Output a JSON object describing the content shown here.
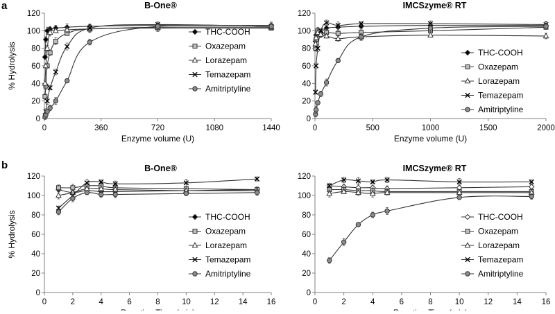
{
  "panel_letters": [
    "a",
    "b"
  ],
  "legend": {
    "entries": [
      "THC-COOH",
      "Oxazepam",
      "Lorazepam",
      "Temazepam",
      "Amitriptyline"
    ],
    "markers": [
      "diamond",
      "square",
      "triangle",
      "x",
      "circle"
    ]
  },
  "colors": {
    "black": "#000000",
    "gray": "#8c8c8c",
    "light_gray": "#bdbdbd",
    "line": "#333333"
  },
  "chart_data": [
    {
      "id": "a-left",
      "type": "line",
      "title": "B-One®",
      "xlabel": "Enzyme volume (U)",
      "ylabel": "% Hydrolysis",
      "xlim": [
        0,
        1440
      ],
      "ylim": [
        0,
        120
      ],
      "xticks": [
        0,
        360,
        720,
        1080,
        1440
      ],
      "yticks": [
        0,
        20,
        40,
        60,
        80,
        100,
        120
      ],
      "grid": false,
      "legend_position": "right",
      "series": [
        {
          "name": "THC-COOH",
          "marker": "diamond",
          "points": [
            [
              4,
              70
            ],
            [
              9,
              90
            ],
            [
              18,
              100
            ],
            [
              36,
              102
            ],
            [
              72,
              103
            ],
            [
              144,
              104
            ],
            [
              288,
              105
            ],
            [
              720,
              106
            ],
            [
              1440,
              106
            ]
          ]
        },
        {
          "name": "Oxazepam",
          "marker": "square",
          "points": [
            [
              4,
              25
            ],
            [
              9,
              37
            ],
            [
              18,
              60
            ],
            [
              36,
              75
            ],
            [
              72,
              88
            ],
            [
              144,
              97
            ],
            [
              288,
              102
            ],
            [
              720,
              103
            ],
            [
              1440,
              103
            ]
          ]
        },
        {
          "name": "Lorazepam",
          "marker": "triangle",
          "points": [
            [
              4,
              40
            ],
            [
              9,
              60
            ],
            [
              18,
              80
            ],
            [
              36,
              98
            ],
            [
              72,
              100
            ],
            [
              144,
              101
            ],
            [
              288,
              102
            ],
            [
              720,
              104
            ],
            [
              1440,
              104
            ]
          ]
        },
        {
          "name": "Temazepam",
          "marker": "x",
          "points": [
            [
              4,
              3
            ],
            [
              9,
              8
            ],
            [
              18,
              20
            ],
            [
              36,
              35
            ],
            [
              72,
              53
            ],
            [
              144,
              82
            ],
            [
              288,
              103
            ],
            [
              720,
              107
            ],
            [
              1440,
              105
            ]
          ]
        },
        {
          "name": "Amitriptyline",
          "marker": "circle",
          "points": [
            [
              4,
              2
            ],
            [
              9,
              4
            ],
            [
              18,
              8
            ],
            [
              36,
              12
            ],
            [
              72,
              20
            ],
            [
              144,
              43
            ],
            [
              288,
              87
            ],
            [
              720,
              105
            ],
            [
              1440,
              105
            ]
          ]
        }
      ]
    },
    {
      "id": "a-right",
      "type": "line",
      "title": "IMCSzyme® RT",
      "xlabel": "Enzyme volume (U)",
      "ylabel": "",
      "xlim": [
        0,
        2000
      ],
      "ylim": [
        0,
        120
      ],
      "xticks": [
        0,
        500,
        1000,
        1500,
        2000
      ],
      "yticks": [
        0,
        20,
        40,
        60,
        80,
        100,
        120
      ],
      "grid": false,
      "legend_position": "right",
      "series": [
        {
          "name": "THC-COOH",
          "marker": "diamond",
          "points": [
            [
              5,
              88
            ],
            [
              10,
              95
            ],
            [
              25,
              100
            ],
            [
              50,
              98
            ],
            [
              100,
              103
            ],
            [
              200,
              104
            ],
            [
              400,
              105
            ],
            [
              1000,
              106
            ],
            [
              2000,
              106
            ]
          ]
        },
        {
          "name": "Oxazepam",
          "marker": "square",
          "points": [
            [
              5,
              80
            ],
            [
              10,
              90
            ],
            [
              25,
              100
            ],
            [
              50,
              96
            ],
            [
              100,
              98
            ],
            [
              200,
              97
            ],
            [
              400,
              98
            ],
            [
              1000,
              100
            ],
            [
              2000,
              104
            ]
          ]
        },
        {
          "name": "Lorazepam",
          "marker": "triangle",
          "points": [
            [
              5,
              85
            ],
            [
              10,
              92
            ],
            [
              25,
              98
            ],
            [
              50,
              96
            ],
            [
              100,
              94
            ],
            [
              200,
              91
            ],
            [
              400,
              93
            ],
            [
              1000,
              95
            ],
            [
              2000,
              94
            ]
          ]
        },
        {
          "name": "Temazepam",
          "marker": "x",
          "points": [
            [
              5,
              30
            ],
            [
              10,
              60
            ],
            [
              25,
              80
            ],
            [
              50,
              100
            ],
            [
              100,
              109
            ],
            [
              200,
              106
            ],
            [
              400,
              108
            ],
            [
              1000,
              108
            ],
            [
              2000,
              107
            ]
          ]
        },
        {
          "name": "Amitriptyline",
          "marker": "circle",
          "points": [
            [
              5,
              5
            ],
            [
              10,
              10
            ],
            [
              25,
              18
            ],
            [
              50,
              28
            ],
            [
              100,
              41
            ],
            [
              200,
              66
            ],
            [
              400,
              93
            ],
            [
              1000,
              103
            ],
            [
              2000,
              105
            ]
          ]
        }
      ]
    },
    {
      "id": "b-left",
      "type": "line",
      "title": "B-One®",
      "xlabel": "Reaction Time (min)",
      "ylabel": "% Hydrolysis",
      "xlim": [
        0,
        16
      ],
      "ylim": [
        0,
        120
      ],
      "xticks": [
        0,
        2,
        4,
        6,
        8,
        10,
        12,
        14,
        16
      ],
      "yticks": [
        0,
        20,
        40,
        60,
        80,
        100,
        120
      ],
      "grid": false,
      "legend_position": "right",
      "series": [
        {
          "name": "THC-COOH",
          "marker": "diamond",
          "points": [
            [
              1,
              106
            ],
            [
              2,
              103
            ],
            [
              3,
              105
            ],
            [
              4,
              104
            ],
            [
              5,
              104
            ],
            [
              10,
              105
            ],
            [
              15,
              106
            ]
          ]
        },
        {
          "name": "Oxazepam",
          "marker": "square",
          "points": [
            [
              1,
              108
            ],
            [
              2,
              108
            ],
            [
              3,
              110
            ],
            [
              4,
              110
            ],
            [
              5,
              108
            ],
            [
              10,
              107
            ],
            [
              15,
              106
            ]
          ]
        },
        {
          "name": "Lorazepam",
          "marker": "triangle",
          "points": [
            [
              1,
              100
            ],
            [
              2,
              103
            ],
            [
              3,
              107
            ],
            [
              4,
              107
            ],
            [
              5,
              106
            ],
            [
              10,
              105
            ],
            [
              15,
              105
            ]
          ]
        },
        {
          "name": "Temazepam",
          "marker": "x",
          "points": [
            [
              1,
              87
            ],
            [
              2,
              100
            ],
            [
              3,
              113
            ],
            [
              4,
              114
            ],
            [
              5,
              112
            ],
            [
              10,
              113
            ],
            [
              15,
              117
            ]
          ]
        },
        {
          "name": "Amitriptyline",
          "marker": "circle",
          "points": [
            [
              1,
              83
            ],
            [
              2,
              97
            ],
            [
              3,
              103
            ],
            [
              4,
              101
            ],
            [
              5,
              101
            ],
            [
              10,
              102
            ],
            [
              15,
              103
            ]
          ]
        }
      ]
    },
    {
      "id": "b-right",
      "type": "line",
      "title": "IMCSzyme® RT",
      "xlabel": "Reaction Time (min)",
      "ylabel": "",
      "xlim": [
        0,
        16
      ],
      "ylim": [
        0,
        120
      ],
      "xticks": [
        0,
        2,
        4,
        6,
        8,
        10,
        12,
        14,
        16
      ],
      "yticks": [
        0,
        20,
        40,
        60,
        80,
        100,
        120
      ],
      "grid": false,
      "legend_position": "bottom-right",
      "series": [
        {
          "name": "THC-COOH",
          "marker": "diamond-open",
          "points": [
            [
              1,
              110
            ],
            [
              2,
              109
            ],
            [
              3,
              108
            ],
            [
              4,
              108
            ],
            [
              5,
              107
            ],
            [
              10,
              108
            ],
            [
              15,
              109
            ]
          ]
        },
        {
          "name": "Oxazepam",
          "marker": "square",
          "points": [
            [
              1,
              106
            ],
            [
              2,
              106
            ],
            [
              3,
              105
            ],
            [
              4,
              105
            ],
            [
              5,
              104
            ],
            [
              10,
              104
            ],
            [
              15,
              104
            ]
          ]
        },
        {
          "name": "Lorazepam",
          "marker": "triangle",
          "points": [
            [
              1,
              102
            ],
            [
              2,
              104
            ],
            [
              3,
              103
            ],
            [
              4,
              102
            ],
            [
              5,
              103
            ],
            [
              10,
              103
            ],
            [
              15,
              103
            ]
          ]
        },
        {
          "name": "Temazepam",
          "marker": "x",
          "points": [
            [
              1,
              110
            ],
            [
              2,
              116
            ],
            [
              3,
              115
            ],
            [
              4,
              114
            ],
            [
              5,
              116
            ],
            [
              10,
              114
            ],
            [
              15,
              114
            ]
          ]
        },
        {
          "name": "Amitriptyline",
          "marker": "circle",
          "points": [
            [
              1,
              33
            ],
            [
              2,
              52
            ],
            [
              3,
              70
            ],
            [
              4,
              80
            ],
            [
              5,
              84
            ],
            [
              10,
              98
            ],
            [
              15,
              99
            ]
          ]
        }
      ]
    }
  ]
}
